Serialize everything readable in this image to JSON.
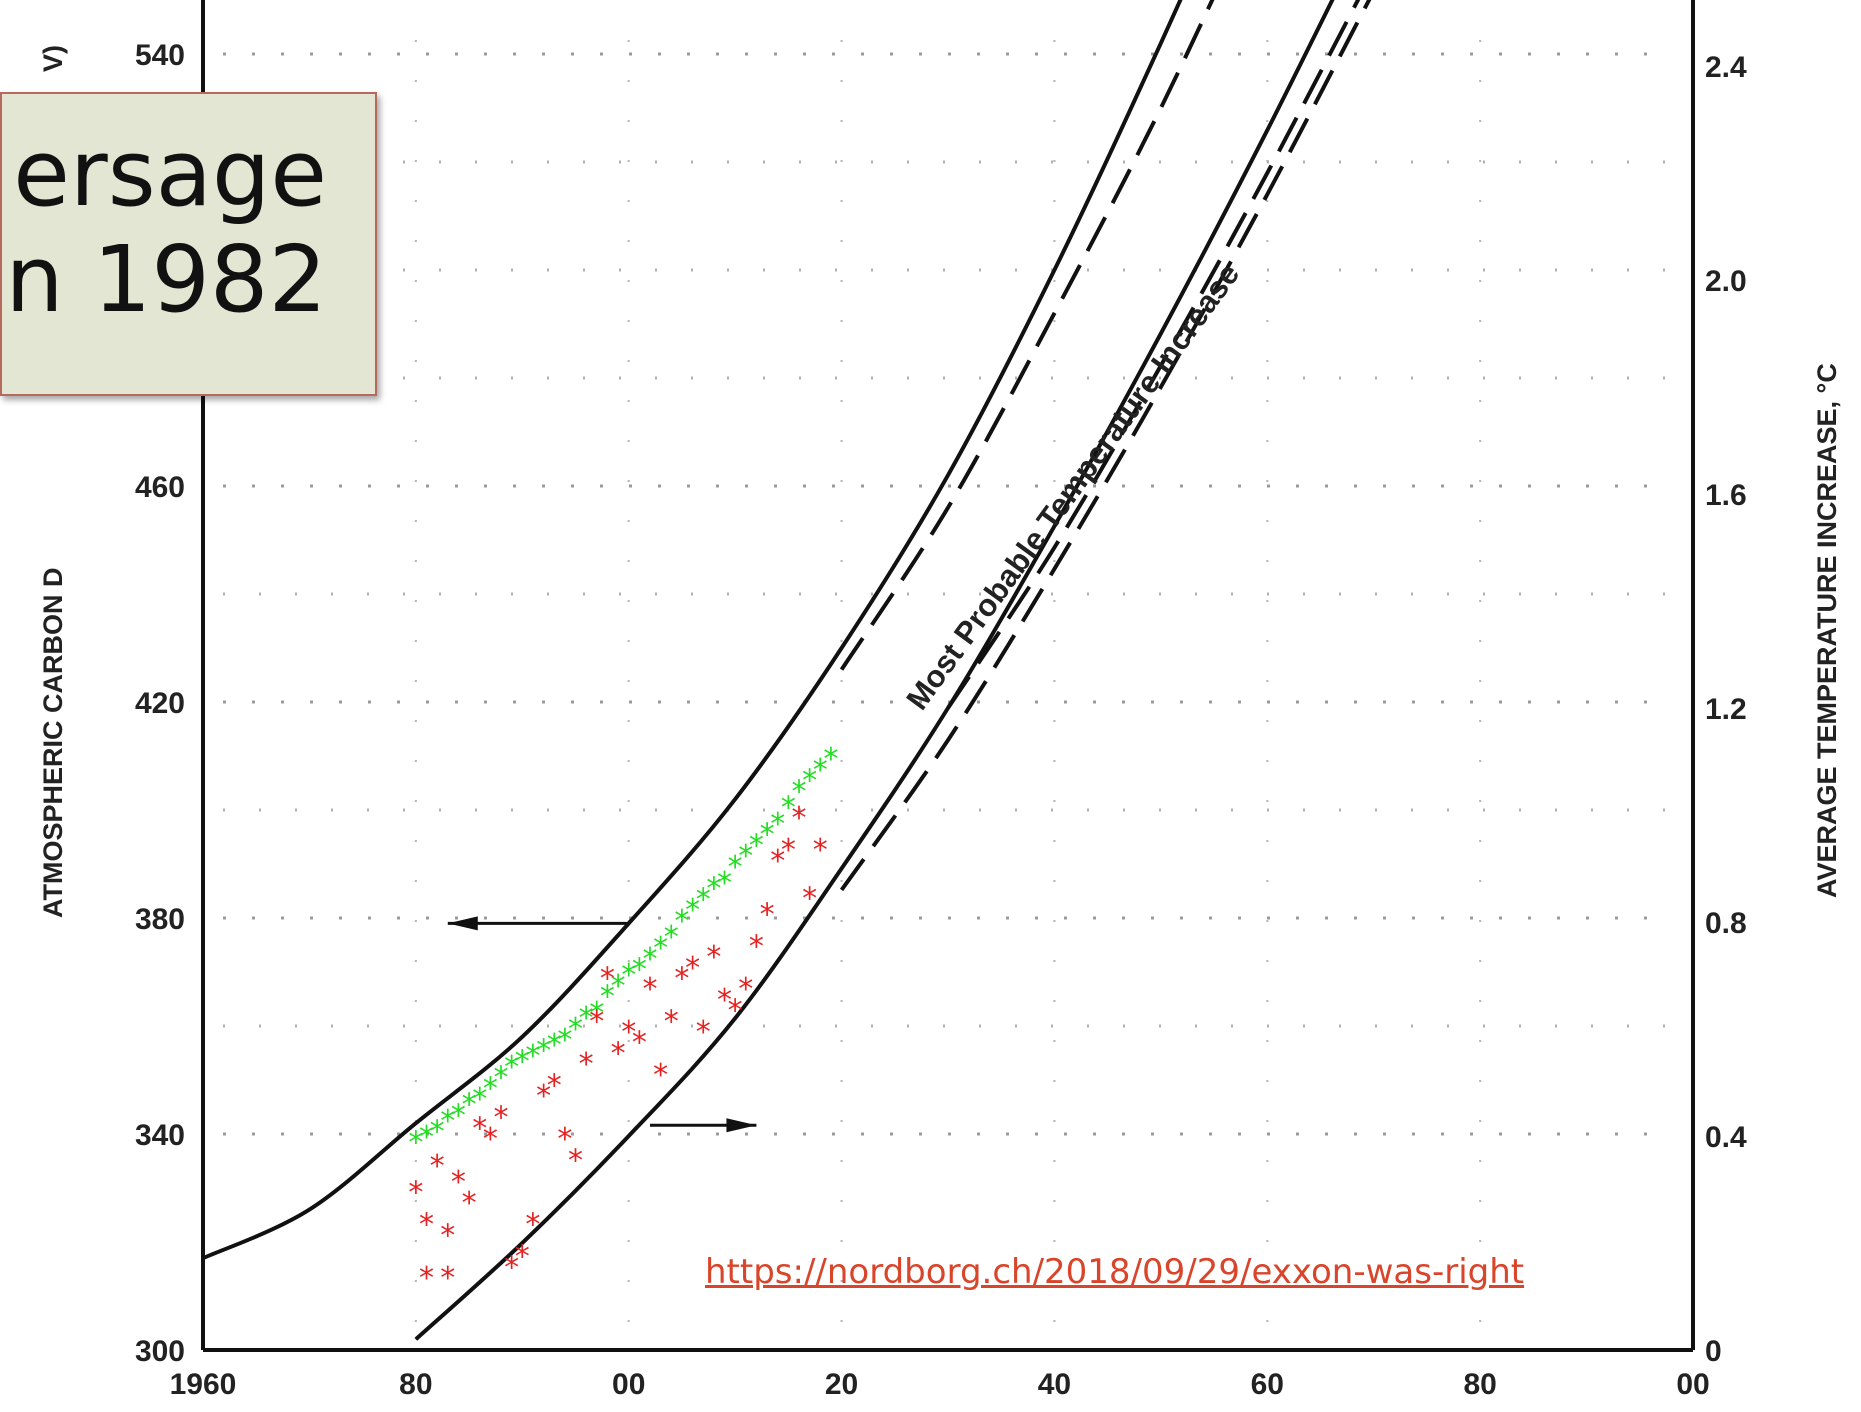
{
  "callout": {
    "line1": "ersage",
    "line2": "n 1982"
  },
  "source_url": "https://nordborg.ch/2018/09/29/exxon-was-right",
  "colors": {
    "measured_co2": "#22dd22",
    "measured_temp": "#e52222",
    "link": "#d9452b",
    "callout_bg": "#e3e6d3",
    "callout_border": "#b56a5e"
  },
  "chart_data": {
    "type": "line",
    "x_tick_labels": [
      "1960",
      "80",
      "00",
      "20",
      "40",
      "60",
      "80",
      "00"
    ],
    "x_tick_years": [
      1960,
      1980,
      2000,
      2020,
      2040,
      2060,
      2080,
      2100
    ],
    "xlim": [
      1960,
      2100
    ],
    "ylim_left": [
      300,
      560
    ],
    "yticks_left": [
      300,
      340,
      380,
      420,
      460,
      540
    ],
    "ylim_right": [
      0,
      2.6
    ],
    "yticks_right_labels": [
      "0",
      "0.4",
      "0.8",
      "1.2",
      "1.6",
      "2.0",
      "2.4"
    ],
    "yticks_right": [
      0,
      0.4,
      0.8,
      1.2,
      1.6,
      2.0,
      2.4
    ],
    "ylabel_left": "ATMOSPHERIC CARBON D",
    "ylabel_left_suffix": "V)",
    "ylabel_right": "AVERAGE TEMPERATURE INCREASE, °C",
    "annotation": "Most Probable Temperature Increase",
    "series": [
      {
        "style": "solid",
        "axis": "left",
        "x": [
          1960,
          1970,
          1980,
          1990,
          2000,
          2010,
          2020,
          2030,
          2040,
          2050,
          2060
        ],
        "y": [
          317,
          326,
          342,
          358,
          379,
          402,
          430,
          462,
          500,
          542,
          586
        ]
      },
      {
        "style": "dashed",
        "axis": "left",
        "x": [
          2020,
          2030,
          2040,
          2050,
          2060
        ],
        "y": [
          426,
          456,
          492,
          530,
          572
        ]
      },
      {
        "style": "solid",
        "axis": "right",
        "x": [
          1980,
          1990,
          2000,
          2010,
          2020,
          2030,
          2040,
          2050,
          2060,
          2070
        ],
        "y": [
          0.02,
          0.2,
          0.4,
          0.62,
          0.9,
          1.2,
          1.54,
          1.9,
          2.28,
          2.68
        ]
      },
      {
        "style": "dashed",
        "axis": "right",
        "x": [
          2020,
          2030,
          2040,
          2050,
          2060,
          2070
        ],
        "y": [
          0.86,
          1.14,
          1.46,
          1.8,
          2.16,
          2.54
        ]
      },
      {
        "style": "dashed",
        "axis": "right",
        "x": [
          2030,
          2040,
          2050,
          2060,
          2070
        ],
        "y": [
          1.2,
          1.5,
          1.84,
          2.2,
          2.58
        ]
      }
    ],
    "arrows": [
      {
        "x_from": 2000,
        "x_to": 1983,
        "y": 379,
        "axis": "left",
        "points_to": "left"
      },
      {
        "x_from": 2002,
        "x_to": 2012,
        "y": 0.42,
        "axis": "right",
        "points_to": "right"
      }
    ],
    "measured_co2": {
      "axis": "left",
      "marker": "*",
      "x": [
        1980,
        1981,
        1982,
        1983,
        1984,
        1985,
        1986,
        1987,
        1988,
        1989,
        1990,
        1991,
        1992,
        1993,
        1994,
        1995,
        1996,
        1997,
        1998,
        1999,
        2000,
        2001,
        2002,
        2003,
        2004,
        2005,
        2006,
        2007,
        2008,
        2009,
        2010,
        2011,
        2012,
        2013,
        2014,
        2015,
        2016,
        2017,
        2018,
        2019
      ],
      "y": [
        339,
        340,
        341,
        343,
        344,
        346,
        347,
        349,
        351,
        353,
        354,
        355,
        356,
        357,
        358,
        360,
        362,
        363,
        366,
        368,
        370,
        371,
        373,
        375,
        377,
        380,
        382,
        384,
        386,
        387,
        390,
        392,
        394,
        396,
        398,
        401,
        404,
        406,
        408,
        410
      ]
    },
    "measured_temp": {
      "axis": "right",
      "marker": "*",
      "x": [
        1980,
        1981,
        1981,
        1982,
        1983,
        1983,
        1984,
        1985,
        1986,
        1987,
        1988,
        1989,
        1990,
        1991,
        1992,
        1993,
        1994,
        1995,
        1996,
        1997,
        1998,
        1999,
        2000,
        2001,
        2002,
        2003,
        2004,
        2005,
        2006,
        2007,
        2008,
        2009,
        2010,
        2011,
        2012,
        2013,
        2014,
        2015,
        2016,
        2017,
        2018
      ],
      "y": [
        0.3,
        0.24,
        0.14,
        0.35,
        0.14,
        0.22,
        0.32,
        0.28,
        0.42,
        0.4,
        0.44,
        0.16,
        0.18,
        0.24,
        0.48,
        0.5,
        0.4,
        0.36,
        0.54,
        0.62,
        0.7,
        0.56,
        0.6,
        0.58,
        0.68,
        0.52,
        0.62,
        0.7,
        0.72,
        0.6,
        0.74,
        0.66,
        0.64,
        0.68,
        0.76,
        0.82,
        0.92,
        0.94,
        1.0,
        0.85,
        0.94
      ]
    }
  }
}
